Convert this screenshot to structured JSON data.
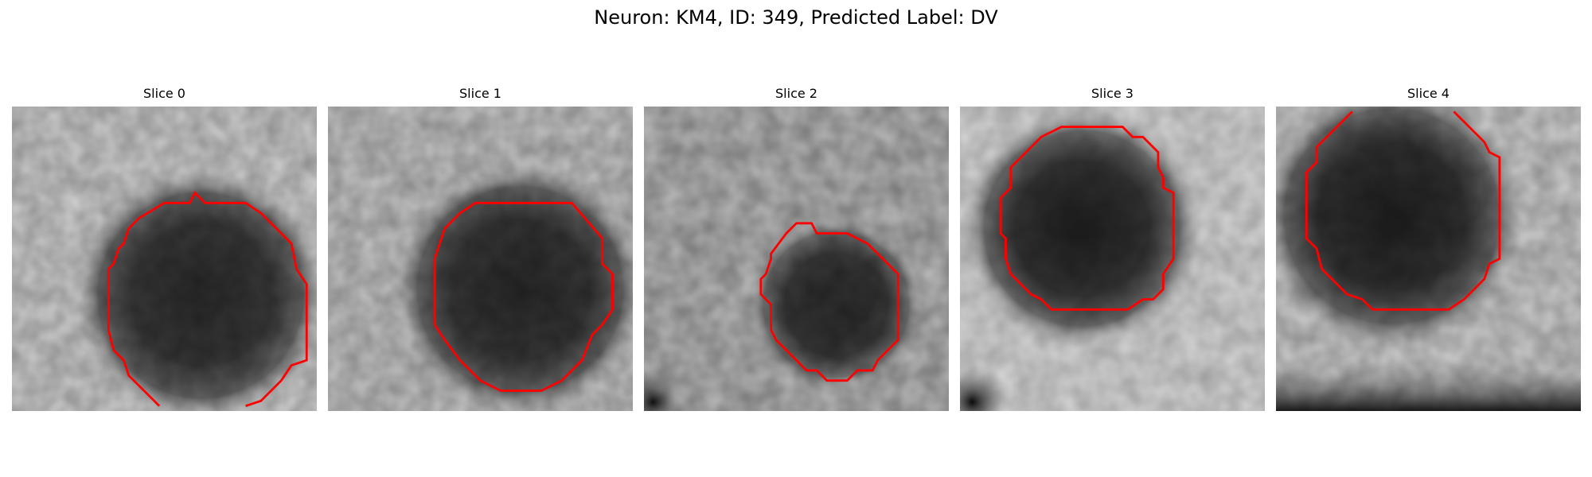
{
  "figure": {
    "title": "Neuron: KM4, ID: 349, Predicted Label: DV"
  },
  "panels": [
    {
      "title": "Slice 0"
    },
    {
      "title": "Slice 1"
    },
    {
      "title": "Slice 2"
    },
    {
      "title": "Slice 3"
    },
    {
      "title": "Slice 4"
    }
  ],
  "colors": {
    "contour": "#ff0000",
    "background": "#ffffff",
    "colormap": "gray"
  }
}
